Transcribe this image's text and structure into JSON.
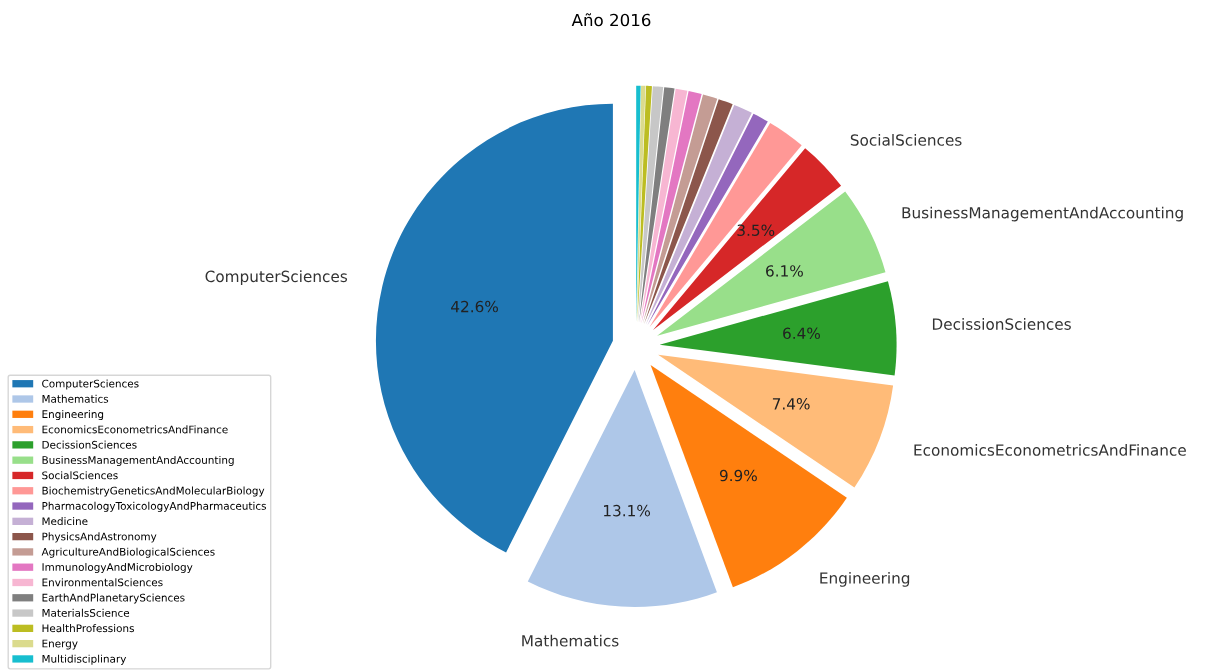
{
  "chart_data": {
    "type": "pie",
    "title": "Año 2016",
    "categories": [
      "ComputerSciences",
      "Mathematics",
      "Engineering",
      "EconomicsEconometricsAndFinance",
      "DecissionSciences",
      "BusinessManagementAndAccounting",
      "SocialSciences",
      "BiochemistryGeneticsAndMolecularBiology",
      "PharmacologyToxicologyAndPharmaceutics",
      "Medicine",
      "PhysicsAndAstronomy",
      "AgricultureAndBiologicalSciences",
      "ImmunologyAndMicrobiology",
      "EnvironmentalSciences",
      "EarthAndPlanetarySciences",
      "MaterialsScience",
      "HealthProfessions",
      "Energy",
      "Multidisciplinary"
    ],
    "values": [
      42.6,
      13.1,
      9.9,
      7.4,
      6.4,
      6.1,
      3.5,
      2.6,
      1.1,
      1.3,
      1.0,
      1.0,
      0.9,
      0.8,
      0.7,
      0.7,
      0.4,
      0.3,
      0.3
    ],
    "value_labels": [
      "42.6%",
      "13.1%",
      "9.9%",
      "7.4%",
      "6.4%",
      "6.1%",
      "3.5%",
      null,
      null,
      null,
      null,
      null,
      null,
      null,
      null,
      null,
      null,
      null,
      null
    ],
    "colors": [
      "#1f77b4",
      "#aec7e8",
      "#ff7f0e",
      "#ffbb78",
      "#2ca02c",
      "#98df8a",
      "#d62728",
      "#ff9896",
      "#9467bd",
      "#c5b0d5",
      "#8c564b",
      "#c49c94",
      "#e377c2",
      "#f7b6d2",
      "#7f7f7f",
      "#c7c7c7",
      "#bcbd22",
      "#dbdb8d",
      "#17becf"
    ],
    "legend": "bottom left"
  }
}
